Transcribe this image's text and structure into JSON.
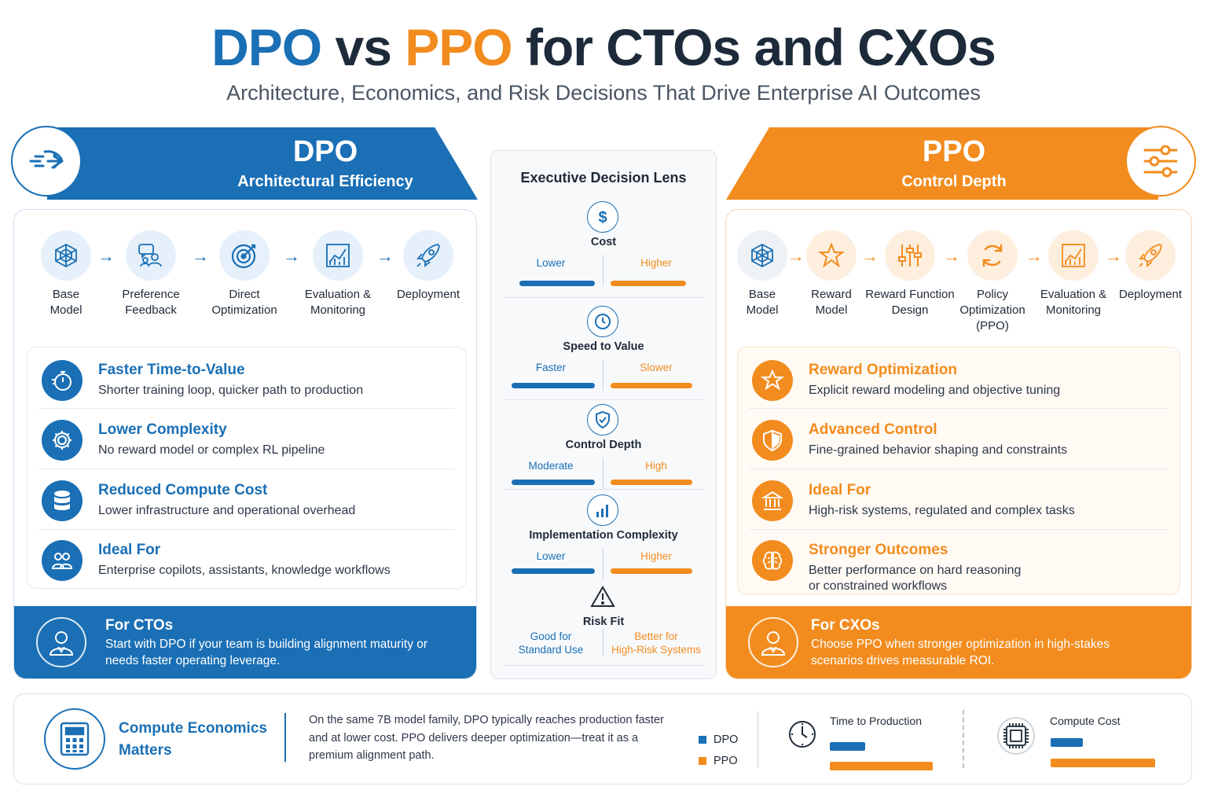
{
  "title": {
    "part1": "DPO",
    "vs": " vs ",
    "part2": "PPO",
    "rest": " for CTOs and CXOs"
  },
  "subtitle": "Architecture, Economics, and Risk Decisions That Drive Enterprise AI Outcomes",
  "colors": {
    "dpo": "#1a6fb5",
    "ppo": "#f28c1e"
  },
  "dpo": {
    "title": "DPO",
    "subtitle": "Architectural Efficiency",
    "badge_icon": "fast-forward-arrow-icon",
    "flow": [
      {
        "label": "Base\nModel",
        "icon": "cube-network-icon"
      },
      {
        "label": "Preference\nFeedback",
        "icon": "users-chat-icon"
      },
      {
        "label": "Direct\nOptimization",
        "icon": "target-icon"
      },
      {
        "label": "Evaluation &\nMonitoring",
        "icon": "chart-icon"
      },
      {
        "label": "Deployment",
        "icon": "rocket-icon"
      }
    ],
    "benefits": [
      {
        "title": "Faster Time-to-Value",
        "desc": "Shorter training loop, quicker path to production",
        "icon": "stopwatch-icon"
      },
      {
        "title": "Lower Complexity",
        "desc": "No reward model or complex RL pipeline",
        "icon": "gear-icon"
      },
      {
        "title": "Reduced Compute Cost",
        "desc": "Lower infrastructure and operational overhead",
        "icon": "database-icon"
      },
      {
        "title": "Ideal For",
        "desc": "Enterprise copilots, assistants, knowledge workflows",
        "icon": "users-icon"
      }
    ],
    "callout": {
      "title": "For CTOs",
      "desc": "Start with DPO if your team is building alignment maturity or needs faster operating leverage.",
      "icon": "person-icon"
    }
  },
  "ppo": {
    "title": "PPO",
    "subtitle": "Control Depth",
    "badge_icon": "sliders-icon",
    "flow": [
      {
        "label": "Base\nModel",
        "icon": "cube-network-icon"
      },
      {
        "label": "Reward\nModel",
        "icon": "star-icon"
      },
      {
        "label": "Reward Function\nDesign",
        "icon": "sliders-icon"
      },
      {
        "label": "Policy\nOptimization\n(PPO)",
        "icon": "refresh-icon"
      },
      {
        "label": "Evaluation &\nMonitoring",
        "icon": "chart-icon"
      },
      {
        "label": "Deployment",
        "icon": "rocket-icon"
      }
    ],
    "benefits": [
      {
        "title": "Reward Optimization",
        "desc": "Explicit reward modeling and objective tuning",
        "icon": "star-icon"
      },
      {
        "title": "Advanced Control",
        "desc": "Fine-grained behavior shaping and constraints",
        "icon": "shield-icon"
      },
      {
        "title": "Ideal For",
        "desc": "High-risk systems, regulated and complex tasks",
        "icon": "bank-icon"
      },
      {
        "title": "Stronger Outcomes",
        "desc": "Better performance on hard reasoning\nor constrained workflows",
        "icon": "brain-icon"
      }
    ],
    "callout": {
      "title": "For CXOs",
      "desc": "Choose PPO when stronger optimization in high-stakes scenarios drives measurable ROI.",
      "icon": "person-icon"
    }
  },
  "lens": {
    "title": "Executive Decision Lens",
    "metrics": [
      {
        "name": "Cost",
        "dpo": "Lower",
        "ppo": "Higher",
        "icon": "dollar-icon",
        "dpo_level": 0.45,
        "ppo_level": 0.55
      },
      {
        "name": "Speed to Value",
        "dpo": "Faster",
        "ppo": "Slower",
        "icon": "clock-icon",
        "dpo_level": 0.55,
        "ppo_level": 0.55
      },
      {
        "name": "Control Depth",
        "dpo": "Moderate",
        "ppo": "High",
        "icon": "shield-check-icon",
        "dpo_level": 0.55,
        "ppo_level": 0.55
      },
      {
        "name": "Implementation Complexity",
        "dpo": "Lower",
        "ppo": "Higher",
        "icon": "bar-chart-icon",
        "dpo_level": 0.55,
        "ppo_level": 0.55
      },
      {
        "name": "Risk Fit",
        "dpo": "Good for\nStandard Use",
        "ppo": "Better for\nHigh-Risk Systems",
        "icon": "warning-icon"
      }
    ]
  },
  "bottom": {
    "title": "Compute Economics\nMatters",
    "icon": "calculator-icon",
    "desc": "On the same 7B model family, DPO typically reaches production faster and at lower cost. PPO delivers deeper optimization—treat it as a premium alignment path.",
    "legend": [
      {
        "label": "DPO"
      },
      {
        "label": "PPO"
      }
    ],
    "comparisons": [
      {
        "label": "Time to Production",
        "icon": "clock-icon",
        "dpo": 0.35,
        "ppo": 1.0
      },
      {
        "label": "Compute Cost",
        "icon": "chip-icon",
        "dpo": 0.3,
        "ppo": 1.0
      }
    ]
  }
}
